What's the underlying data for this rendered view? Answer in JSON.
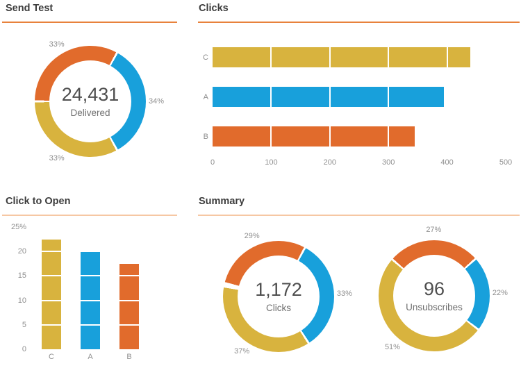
{
  "colors": {
    "orange": "#E16B2C",
    "blue": "#18A0DB",
    "yellow": "#D8B33E",
    "rule_top": "#E8823C",
    "rule_bottom": "#F6C7A3",
    "title_text": "#3C3C3C",
    "axis_text": "#8F8F8F",
    "value_text": "#4F4F4F",
    "sublabel_text": "#6F6F6F",
    "gridline": "#FFFFFF"
  },
  "panels": {
    "send_test": {
      "title": "Send Test"
    },
    "clicks": {
      "title": "Clicks"
    },
    "click_to_open": {
      "title": "Click to Open"
    },
    "summary": {
      "title": "Summary"
    }
  },
  "chart_data": [
    {
      "id": "send_test_donut",
      "type": "pie",
      "subtype": "donut",
      "panel": "Send Test",
      "center_value": "24,431",
      "center_label": "Delivered",
      "start_angle_deg": -90,
      "segments": [
        {
          "label": "33%",
          "pct": 33,
          "color": "orange"
        },
        {
          "label": "34%",
          "pct": 34,
          "color": "blue"
        },
        {
          "label": "33%",
          "pct": 33,
          "color": "yellow"
        }
      ]
    },
    {
      "id": "clicks_bar",
      "type": "bar",
      "orientation": "horizontal",
      "panel": "Clicks",
      "categories": [
        "C",
        "A",
        "B"
      ],
      "values": [
        440,
        395,
        345
      ],
      "bar_colors": [
        "yellow",
        "blue",
        "orange"
      ],
      "x_ticks": [
        0,
        100,
        200,
        300,
        400,
        500
      ],
      "xlim": [
        0,
        500
      ],
      "grid": "white lines over bars at each 100"
    },
    {
      "id": "click_to_open_bar",
      "type": "bar",
      "orientation": "vertical",
      "panel": "Click to Open",
      "categories": [
        "C",
        "A",
        "B"
      ],
      "values": [
        22.5,
        20,
        17.5
      ],
      "bar_colors": [
        "yellow",
        "blue",
        "orange"
      ],
      "y_ticks": [
        {
          "value": 25,
          "label": "25%"
        },
        {
          "value": 20,
          "label": "20"
        },
        {
          "value": 15,
          "label": "15"
        },
        {
          "value": 10,
          "label": "10"
        },
        {
          "value": 5,
          "label": "5"
        },
        {
          "value": 0,
          "label": "0"
        }
      ],
      "ylim": [
        0,
        25
      ],
      "grid": "white lines over bars at each 5"
    },
    {
      "id": "summary_clicks_donut",
      "type": "pie",
      "subtype": "donut",
      "panel": "Summary",
      "center_value": "1,172",
      "center_label": "Clicks",
      "start_angle_deg": -76,
      "segments": [
        {
          "label": "29%",
          "pct": 29,
          "color": "orange"
        },
        {
          "label": "33%",
          "pct": 33,
          "color": "blue"
        },
        {
          "label": "37%",
          "pct": 37,
          "color": "yellow"
        }
      ]
    },
    {
      "id": "summary_unsubscribes_donut",
      "type": "pie",
      "subtype": "donut",
      "panel": "Summary",
      "center_value": "96",
      "center_label": "Unsubscribes",
      "start_angle_deg": -49,
      "segments": [
        {
          "label": "27%",
          "pct": 27,
          "color": "orange"
        },
        {
          "label": "22%",
          "pct": 22,
          "color": "blue"
        },
        {
          "label": "51%",
          "pct": 51,
          "color": "yellow"
        }
      ]
    }
  ]
}
